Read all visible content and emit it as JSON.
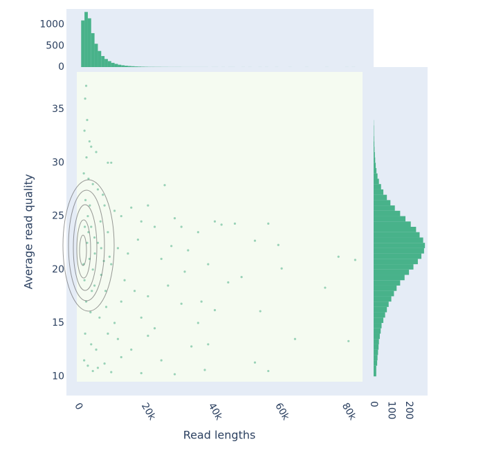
{
  "chart_data": [
    {
      "type": "scatter",
      "xlabel": "Read lengths",
      "ylabel": "Average read quality",
      "color": "#3daa7d",
      "x": [
        1500,
        1200,
        1800,
        1000,
        2500,
        3000,
        1600,
        4500,
        8000,
        9000,
        800,
        2200,
        3500,
        5000,
        6500,
        1300,
        25000,
        7000,
        10000,
        12000,
        15000,
        20000,
        18000,
        22000,
        28000,
        30000,
        35000,
        40000,
        42000,
        46000,
        56000,
        2000,
        3000,
        4000,
        5000,
        6000,
        8000,
        11000,
        14000,
        17000,
        24000,
        27000,
        32000,
        38000,
        48000,
        52000,
        59000,
        60000,
        77000,
        82000,
        73000,
        2500,
        3500,
        1000,
        4000,
        6000,
        9000,
        13000,
        16000,
        20000,
        26000,
        31000,
        36000,
        40000,
        44000,
        53600,
        1500,
        2800,
        5500,
        7500,
        10000,
        12000,
        18000,
        22000,
        30000,
        35000,
        1200,
        3000,
        4500,
        8000,
        11000,
        15000,
        20000,
        24000,
        33000,
        38000,
        64000,
        80000,
        900,
        2000,
        3500,
        5000,
        7000,
        9000,
        12000,
        18000,
        28000,
        37000,
        52000,
        56000,
        1800,
        2200,
        700,
        1100,
        2600,
        3200,
        4100,
        5800,
        6800,
        7300,
        8500
      ],
      "y": [
        37.2,
        36,
        34,
        33,
        32,
        31.5,
        30.5,
        31,
        30,
        30,
        29,
        28.5,
        28,
        27.5,
        27,
        26.5,
        27.9,
        26,
        25.5,
        25,
        25.8,
        26,
        24.5,
        24,
        24.8,
        24,
        23.5,
        24.5,
        24.2,
        24.3,
        24.3,
        25,
        24,
        23,
        22.5,
        22,
        23.5,
        22,
        21.5,
        22.8,
        21,
        22.2,
        21.8,
        20.5,
        19.3,
        22.7,
        22.3,
        20.1,
        21.2,
        20.9,
        18.3,
        21,
        20,
        19,
        18.5,
        19.5,
        20.5,
        19,
        18,
        17.5,
        18.5,
        19.8,
        17,
        16.2,
        18.8,
        16.1,
        17,
        16,
        15.5,
        16.5,
        15,
        17,
        15.5,
        14.5,
        16.8,
        15,
        14,
        13,
        12.5,
        14,
        13.5,
        12.5,
        13.8,
        11.5,
        12.8,
        13,
        13.5,
        13.3,
        11.5,
        11,
        10.5,
        10.8,
        11.2,
        10.4,
        11.8,
        10.3,
        10.2,
        10.6,
        11.3,
        10.5,
        22.5,
        23.5,
        20.5,
        24,
        26,
        18,
        21.5,
        24.5,
        20.8,
        18,
        21.2
      ],
      "xlim": [
        -1300,
        84200
      ],
      "ylim": [
        9.5,
        38.5
      ],
      "xticks": [
        0,
        {
          "value": 20000,
          "label": "20k"
        },
        {
          "value": 40000,
          "label": "40k"
        },
        {
          "value": 60000,
          "label": "60k"
        },
        {
          "value": 80000,
          "label": "80k"
        }
      ],
      "yticks": [
        10,
        15,
        20,
        25,
        30,
        35
      ]
    },
    {
      "type": "histogram",
      "orientation": "vertical",
      "color": "#48b28a",
      "bins": [
        0,
        1000,
        2000,
        3000,
        4000,
        5000,
        6000,
        7000,
        8000,
        9000,
        10000,
        11000,
        12000,
        13000,
        14000,
        15000,
        16000,
        17000,
        18000,
        19000,
        20000,
        21000,
        22000,
        23000,
        24000,
        25000,
        26000,
        27000,
        28000,
        29000,
        30000,
        31000,
        32000,
        33000,
        34000,
        35000,
        36000,
        37000,
        38000,
        39000,
        40000,
        41000,
        42000,
        43000,
        44000,
        45000,
        46000,
        47000,
        48000,
        49000,
        50000,
        51000,
        52000,
        53000,
        54000,
        55000,
        56000,
        57000,
        58000,
        59000,
        60000,
        61000,
        62000,
        63000,
        64000,
        65000,
        66000,
        67000,
        68000,
        69000,
        70000,
        71000,
        72000,
        73000,
        74000,
        75000,
        76000,
        77000,
        78000,
        79000,
        80000,
        81000,
        82000,
        83000,
        84000
      ],
      "counts": [
        1100,
        1300,
        1150,
        800,
        550,
        380,
        260,
        190,
        140,
        100,
        75,
        55,
        42,
        32,
        25,
        20,
        15,
        12,
        9,
        7,
        5,
        5,
        4,
        4,
        3,
        3,
        2,
        2,
        2,
        2,
        1,
        1,
        1,
        1,
        1,
        1,
        1,
        1,
        0,
        1,
        1,
        0,
        1,
        0,
        1,
        1,
        0,
        0,
        1,
        0,
        1,
        0,
        0,
        1,
        0,
        1,
        0,
        0,
        1,
        0,
        0,
        0,
        1,
        0,
        0,
        0,
        0,
        1,
        0,
        0,
        0,
        0,
        0,
        1,
        0,
        0,
        0,
        0,
        0,
        1,
        0,
        1,
        0,
        0
      ],
      "xlim": [
        -1300,
        84200
      ],
      "ylim": [
        0,
        1370
      ],
      "yticks": [
        0,
        500,
        1000
      ]
    },
    {
      "type": "histogram",
      "orientation": "horizontal",
      "color": "#48b28a",
      "bins": [
        10,
        10.5,
        11,
        11.5,
        12,
        12.5,
        13,
        13.5,
        14,
        14.5,
        15,
        15.5,
        16,
        16.5,
        17,
        17.5,
        18,
        18.5,
        19,
        19.5,
        20,
        20.5,
        21,
        21.5,
        22,
        22.5,
        23,
        23.5,
        24,
        24.5,
        25,
        25.5,
        26,
        26.5,
        27,
        27.5,
        28,
        28.5,
        29,
        29.5,
        30,
        30.5,
        31,
        31.5,
        32,
        32.5,
        33,
        33.5,
        34
      ],
      "counts": [
        15,
        15,
        20,
        22,
        25,
        28,
        30,
        35,
        40,
        45,
        55,
        65,
        75,
        85,
        100,
        115,
        130,
        150,
        175,
        200,
        225,
        250,
        270,
        285,
        290,
        280,
        260,
        240,
        210,
        180,
        150,
        120,
        95,
        75,
        55,
        42,
        30,
        22,
        16,
        12,
        9,
        7,
        5,
        4,
        3,
        2,
        2,
        1
      ],
      "xlim": [
        0,
        305
      ],
      "ylim": [
        9.5,
        38.5
      ],
      "xticks": [
        0,
        100,
        200
      ]
    }
  ]
}
